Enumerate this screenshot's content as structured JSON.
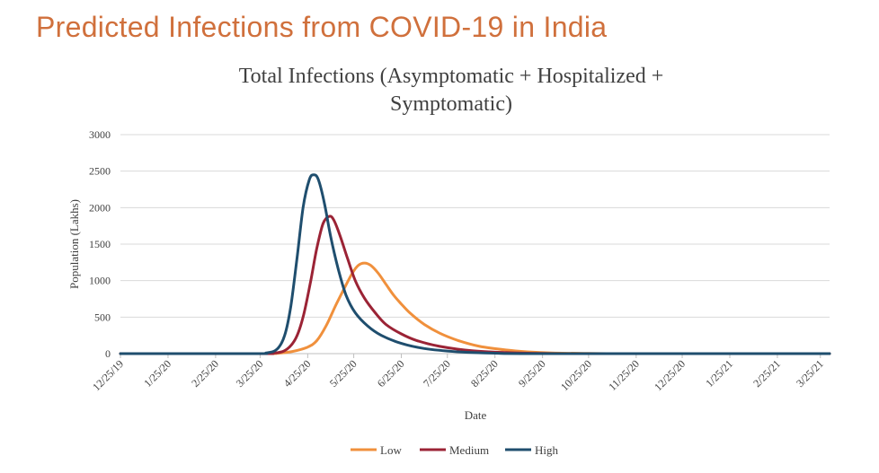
{
  "page": {
    "slide_title": "Predicted Infections from COVID-19 in India"
  },
  "chart_data": {
    "type": "line",
    "title": "Total Infections (Asymptomatic + Hospitalized + Symptomatic)",
    "title_lines": [
      "Total Infections (Asymptomatic + Hospitalized +",
      "Symptomatic)"
    ],
    "xlabel": "Date",
    "ylabel": "Population (Lakhs)",
    "ylim": [
      0,
      3000
    ],
    "yticks": [
      0,
      500,
      1000,
      1500,
      2000,
      2500,
      3000
    ],
    "xlim": [
      "2019-12-25",
      "2021-03-31"
    ],
    "xtick_labels": [
      "12/25/19",
      "1/25/20",
      "2/25/20",
      "3/25/20",
      "4/25/20",
      "5/25/20",
      "6/25/20",
      "7/25/20",
      "8/25/20",
      "9/25/20",
      "10/25/20",
      "11/25/20",
      "12/25/20",
      "1/25/21",
      "2/25/21",
      "3/25/21"
    ],
    "grid": "horizontal",
    "legend_position": "bottom",
    "series": [
      {
        "name": "Low",
        "color": "#F0903C",
        "points": [
          [
            "2019-12-25",
            0
          ],
          [
            "2020-03-25",
            0
          ],
          [
            "2020-04-05",
            5
          ],
          [
            "2020-04-15",
            30
          ],
          [
            "2020-04-25",
            90
          ],
          [
            "2020-05-01",
            180
          ],
          [
            "2020-05-07",
            380
          ],
          [
            "2020-05-13",
            650
          ],
          [
            "2020-05-19",
            900
          ],
          [
            "2020-05-24",
            1100
          ],
          [
            "2020-05-28",
            1210
          ],
          [
            "2020-06-01",
            1240
          ],
          [
            "2020-06-05",
            1210
          ],
          [
            "2020-06-10",
            1100
          ],
          [
            "2020-06-15",
            950
          ],
          [
            "2020-06-20",
            800
          ],
          [
            "2020-06-25",
            680
          ],
          [
            "2020-07-01",
            550
          ],
          [
            "2020-07-10",
            400
          ],
          [
            "2020-07-20",
            280
          ],
          [
            "2020-08-01",
            180
          ],
          [
            "2020-08-15",
            100
          ],
          [
            "2020-09-01",
            50
          ],
          [
            "2020-09-15",
            25
          ],
          [
            "2020-10-01",
            10
          ],
          [
            "2020-10-25",
            3
          ],
          [
            "2020-11-25",
            0
          ],
          [
            "2021-03-31",
            0
          ]
        ]
      },
      {
        "name": "Medium",
        "color": "#9B2335",
        "points": [
          [
            "2019-12-25",
            0
          ],
          [
            "2020-03-25",
            0
          ],
          [
            "2020-04-01",
            5
          ],
          [
            "2020-04-10",
            40
          ],
          [
            "2020-04-17",
            200
          ],
          [
            "2020-04-22",
            500
          ],
          [
            "2020-04-27",
            1000
          ],
          [
            "2020-05-01",
            1450
          ],
          [
            "2020-05-05",
            1780
          ],
          [
            "2020-05-09",
            1880
          ],
          [
            "2020-05-12",
            1830
          ],
          [
            "2020-05-16",
            1620
          ],
          [
            "2020-05-21",
            1300
          ],
          [
            "2020-05-26",
            1000
          ],
          [
            "2020-06-01",
            760
          ],
          [
            "2020-06-08",
            560
          ],
          [
            "2020-06-15",
            400
          ],
          [
            "2020-06-25",
            270
          ],
          [
            "2020-07-05",
            180
          ],
          [
            "2020-07-20",
            100
          ],
          [
            "2020-08-10",
            40
          ],
          [
            "2020-09-01",
            15
          ],
          [
            "2020-09-25",
            3
          ],
          [
            "2020-10-25",
            0
          ],
          [
            "2021-03-31",
            0
          ]
        ]
      },
      {
        "name": "High",
        "color": "#1F4E6E",
        "points": [
          [
            "2019-12-25",
            0
          ],
          [
            "2020-03-20",
            0
          ],
          [
            "2020-03-29",
            10
          ],
          [
            "2020-04-05",
            60
          ],
          [
            "2020-04-10",
            250
          ],
          [
            "2020-04-14",
            650
          ],
          [
            "2020-04-18",
            1300
          ],
          [
            "2020-04-22",
            2000
          ],
          [
            "2020-04-26",
            2380
          ],
          [
            "2020-04-29",
            2450
          ],
          [
            "2020-05-02",
            2380
          ],
          [
            "2020-05-06",
            2050
          ],
          [
            "2020-05-10",
            1600
          ],
          [
            "2020-05-15",
            1150
          ],
          [
            "2020-05-20",
            800
          ],
          [
            "2020-05-26",
            560
          ],
          [
            "2020-06-03",
            380
          ],
          [
            "2020-06-12",
            250
          ],
          [
            "2020-06-25",
            140
          ],
          [
            "2020-07-10",
            70
          ],
          [
            "2020-08-01",
            25
          ],
          [
            "2020-08-25",
            6
          ],
          [
            "2020-09-25",
            0
          ],
          [
            "2021-03-31",
            0
          ]
        ]
      }
    ]
  }
}
